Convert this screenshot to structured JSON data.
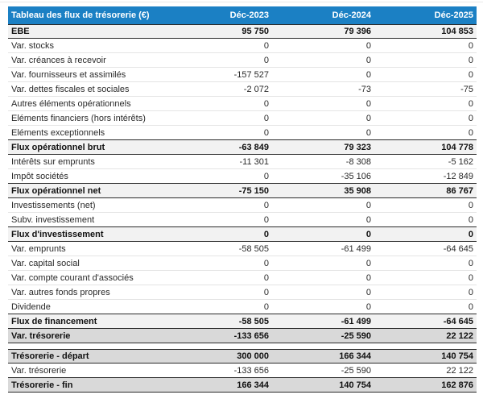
{
  "table": {
    "title": "Tableau des flux de trésorerie (€)",
    "columns": [
      "Déc-2023",
      "Déc-2024",
      "Déc-2025"
    ],
    "colors": {
      "header_bg": "#1b80c4",
      "header_text": "#ffffff",
      "subtotal_row_bg": "#f2f2f2",
      "total_row_bg": "#d9d9d9",
      "dark_border": "#2a2a2a",
      "light_border": "#e4e4e4"
    },
    "sections": [
      {
        "name": "flux",
        "rows": [
          {
            "label": "EBE",
            "values": [
              "95 750",
              "79 396",
              "104 853"
            ],
            "style": "subtotal"
          },
          {
            "label": "Var. stocks",
            "values": [
              "0",
              "0",
              "0"
            ],
            "style": "normal"
          },
          {
            "label": "Var. créances à recevoir",
            "values": [
              "0",
              "0",
              "0"
            ],
            "style": "normal"
          },
          {
            "label": "Var. fournisseurs et assimilés",
            "values": [
              "-157 527",
              "0",
              "0"
            ],
            "style": "normal"
          },
          {
            "label": "Var. dettes fiscales et sociales",
            "values": [
              "-2 072",
              "-73",
              "-75"
            ],
            "style": "normal"
          },
          {
            "label": "Autres éléments opérationnels",
            "values": [
              "0",
              "0",
              "0"
            ],
            "style": "normal"
          },
          {
            "label": "Eléments financiers (hors intérêts)",
            "values": [
              "0",
              "0",
              "0"
            ],
            "style": "normal"
          },
          {
            "label": "Eléments exceptionnels",
            "values": [
              "0",
              "0",
              "0"
            ],
            "style": "normal"
          },
          {
            "label": "Flux opérationnel brut",
            "values": [
              "-63 849",
              "79 323",
              "104 778"
            ],
            "style": "subtotal"
          },
          {
            "label": "Intérêts sur emprunts",
            "values": [
              "-11 301",
              "-8 308",
              "-5 162"
            ],
            "style": "normal"
          },
          {
            "label": "Impôt sociétés",
            "values": [
              "0",
              "-35 106",
              "-12 849"
            ],
            "style": "normal"
          },
          {
            "label": "Flux opérationnel net",
            "values": [
              "-75 150",
              "35 908",
              "86 767"
            ],
            "style": "subtotal"
          },
          {
            "label": "Investissements (net)",
            "values": [
              "0",
              "0",
              "0"
            ],
            "style": "normal"
          },
          {
            "label": "Subv. investissement",
            "values": [
              "0",
              "0",
              "0"
            ],
            "style": "normal"
          },
          {
            "label": "Flux d'investissement",
            "values": [
              "0",
              "0",
              "0"
            ],
            "style": "subtotal"
          },
          {
            "label": "Var. emprunts",
            "values": [
              "-58 505",
              "-61 499",
              "-64 645"
            ],
            "style": "normal"
          },
          {
            "label": "Var. capital social",
            "values": [
              "0",
              "0",
              "0"
            ],
            "style": "normal"
          },
          {
            "label": "Var. compte courant d'associés",
            "values": [
              "0",
              "0",
              "0"
            ],
            "style": "normal"
          },
          {
            "label": "Var. autres fonds propres",
            "values": [
              "0",
              "0",
              "0"
            ],
            "style": "normal"
          },
          {
            "label": "Dividende",
            "values": [
              "0",
              "0",
              "0"
            ],
            "style": "normal"
          },
          {
            "label": "Flux de financement",
            "values": [
              "-58 505",
              "-61 499",
              "-64 645"
            ],
            "style": "subtotal"
          },
          {
            "label": "Var. trésorerie",
            "values": [
              "-133 656",
              "-25 590",
              "22 122"
            ],
            "style": "total"
          }
        ]
      },
      {
        "name": "tresorerie",
        "rows": [
          {
            "label": "Trésorerie - départ",
            "values": [
              "300 000",
              "166 344",
              "140 754"
            ],
            "style": "total"
          },
          {
            "label": "Var. trésorerie",
            "values": [
              "-133 656",
              "-25 590",
              "22 122"
            ],
            "style": "normal"
          },
          {
            "label": "Trésorerie - fin",
            "values": [
              "166 344",
              "140 754",
              "162 876"
            ],
            "style": "total"
          }
        ]
      }
    ]
  }
}
